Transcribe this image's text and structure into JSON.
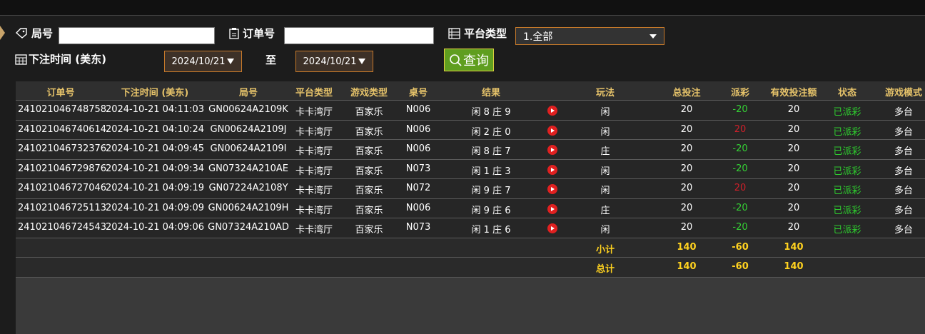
{
  "filters": {
    "round_label": "局号",
    "order_label": "订单号",
    "platform_label": "平台类型",
    "platform_value": "1.全部",
    "time_label": "下注时间 (美东)",
    "date_from": "2024/10/21",
    "to_label": "至",
    "date_to": "2024/10/21",
    "query_button": "查询"
  },
  "table": {
    "columns": [
      "订单号",
      "下注时间 (美东)",
      "局号",
      "平台类型",
      "游戏类型",
      "桌号",
      "结果",
      "玩法",
      "总投注",
      "派彩",
      "有效投注额",
      "状态",
      "游戏模式"
    ],
    "rows": [
      [
        "241021046748758",
        "2024-10-21 04:11:03",
        "GN00624A2109K",
        "卡卡湾厅",
        "百家乐",
        "N006",
        "闲 8 庄 9",
        "闲",
        "20",
        "-20",
        "20",
        "已派彩",
        "多台"
      ],
      [
        "241021046740614",
        "2024-10-21 04:10:24",
        "GN00624A2109J",
        "卡卡湾厅",
        "百家乐",
        "N006",
        "闲 2 庄 0",
        "闲",
        "20",
        "20",
        "20",
        "已派彩",
        "多台"
      ],
      [
        "241021046732376",
        "2024-10-21 04:09:45",
        "GN00624A2109I",
        "卡卡湾厅",
        "百家乐",
        "N006",
        "闲 8 庄 7",
        "庄",
        "20",
        "-20",
        "20",
        "已派彩",
        "多台"
      ],
      [
        "241021046729876",
        "2024-10-21 04:09:34",
        "GN07324A210AE",
        "卡卡湾厅",
        "百家乐",
        "N073",
        "闲 1 庄 3",
        "闲",
        "20",
        "-20",
        "20",
        "已派彩",
        "多台"
      ],
      [
        "241021046727046",
        "2024-10-21 04:09:19",
        "GN07224A2108Y",
        "卡卡湾厅",
        "百家乐",
        "N072",
        "闲 9 庄 7",
        "闲",
        "20",
        "20",
        "20",
        "已派彩",
        "多台"
      ],
      [
        "241021046725113",
        "2024-10-21 04:09:09",
        "GN00624A2109H",
        "卡卡湾厅",
        "百家乐",
        "N006",
        "闲 9 庄 6",
        "庄",
        "20",
        "-20",
        "20",
        "已派彩",
        "多台"
      ],
      [
        "241021046724543",
        "2024-10-21 04:09:06",
        "GN07324A210AD",
        "卡卡湾厅",
        "百家乐",
        "N073",
        "闲 1 庄 6",
        "闲",
        "20",
        "-20",
        "20",
        "已派彩",
        "多台"
      ]
    ],
    "subtotal": {
      "label": "小计",
      "total_bet": "140",
      "payout": "-60",
      "valid_bet": "140"
    },
    "total": {
      "label": "总计",
      "total_bet": "140",
      "payout": "-60",
      "valid_bet": "140"
    }
  }
}
